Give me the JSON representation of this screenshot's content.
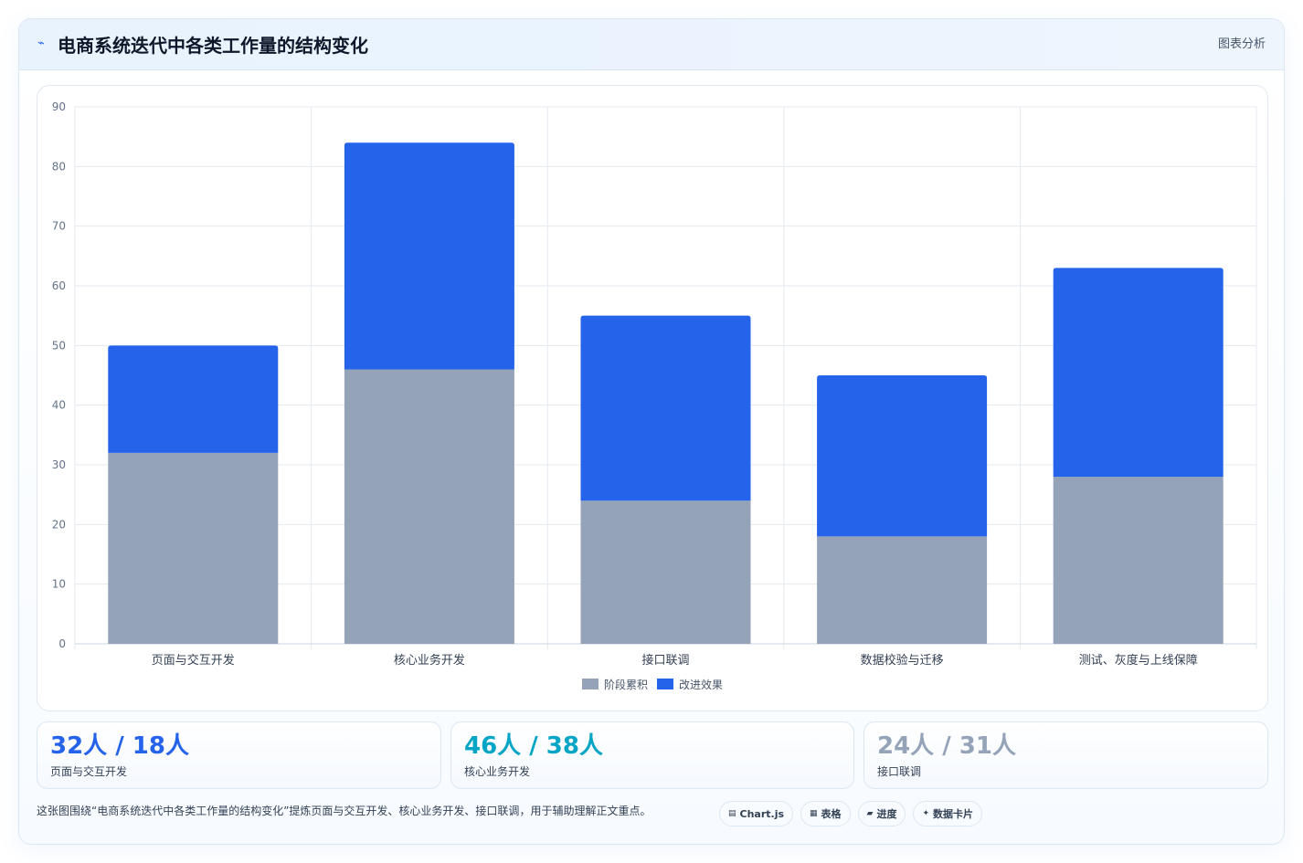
{
  "header": {
    "title": "电商系统迭代中各类工作量的结构变化",
    "tag": "图表分析",
    "icon": "spark-icon"
  },
  "chart_data": {
    "type": "bar",
    "stacked": true,
    "categories": [
      "页面与交互开发",
      "核心业务开发",
      "接口联调",
      "数据校验与迁移",
      "测试、灰度与上线保障"
    ],
    "series": [
      {
        "name": "阶段累积",
        "values": [
          32,
          46,
          24,
          18,
          28
        ],
        "color": "#94a3b8"
      },
      {
        "name": "改进效果",
        "values": [
          18,
          38,
          31,
          27,
          35
        ],
        "color": "#2563eb"
      }
    ],
    "ylim": [
      0,
      90
    ],
    "yticks": [
      0,
      10,
      20,
      30,
      40,
      50,
      60,
      70,
      80,
      90
    ],
    "grid": true,
    "legend": "bottom"
  },
  "stats": [
    {
      "value": "32人 / 18人",
      "label": "页面与交互开发",
      "color": "#2563eb"
    },
    {
      "value": "46人 / 38人",
      "label": "核心业务开发",
      "color": "#06a5c5"
    },
    {
      "value": "24人 / 31人",
      "label": "接口联调",
      "color": "#94a3b8"
    }
  ],
  "footer": {
    "text": "这张图围绕“电商系统迭代中各类工作量的结构变化”提炼页面与交互开发、核心业务开发、接口联调，用于辅助理解正文重点。",
    "pills": [
      {
        "icon": "table-icon",
        "glyph": "▤",
        "label": "Chart.js"
      },
      {
        "icon": "grid-icon",
        "glyph": "▦",
        "label": "表格"
      },
      {
        "icon": "progress-icon",
        "glyph": "▰",
        "label": "进度"
      },
      {
        "icon": "sparkle-icon",
        "glyph": "✦",
        "label": "数据卡片"
      }
    ]
  }
}
